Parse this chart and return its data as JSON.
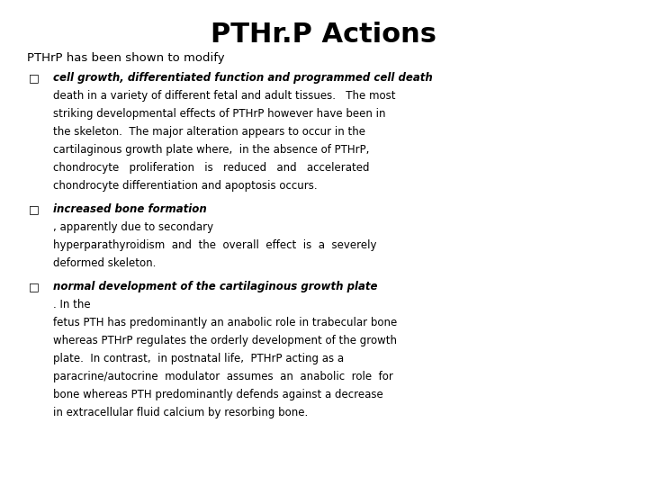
{
  "title": "PTHr.P Actions",
  "background_color": "#ffffff",
  "text_color": "#000000",
  "intro_text": "PTHrP has been shown to modify",
  "title_fontsize": 22,
  "body_fontsize": 8.5,
  "intro_fontsize": 9.5,
  "bullet_char": "□",
  "bullet1_bold": "cell growth, differentiated function and programmed cell death",
  "bullet1_lines": [
    "death in a variety of different fetal and adult tissues.   The most",
    "striking developmental effects of PTHrP however have been in",
    "the skeleton.  The major alteration appears to occur in the",
    "cartilaginous growth plate where,  in the absence of PTHrP,",
    "chondrocyte   proliferation   is   reduced   and   accelerated",
    "chondrocyte differentiation and apoptosis occurs."
  ],
  "bullet2_bold": "increased bone formation",
  "bullet2_lines": [
    ", apparently due to secondary",
    "hyperparathyroidism  and  the  overall  effect  is  a  severely",
    "deformed skeleton."
  ],
  "bullet3_bold": "normal development of the cartilaginous growth plate",
  "bullet3_lines": [
    ". In the",
    "fetus PTH has predominantly an anabolic role in trabecular bone",
    "whereas PTHrP regulates the orderly development of the growth",
    "plate.  In contrast,  in postnatal life,  PTHrP acting as a",
    "paracrine/autocrine  modulator  assumes  an  anabolic  role  for",
    "bone whereas PTH predominantly defends against a decrease",
    "in extracellular fluid calcium by resorbing bone."
  ]
}
